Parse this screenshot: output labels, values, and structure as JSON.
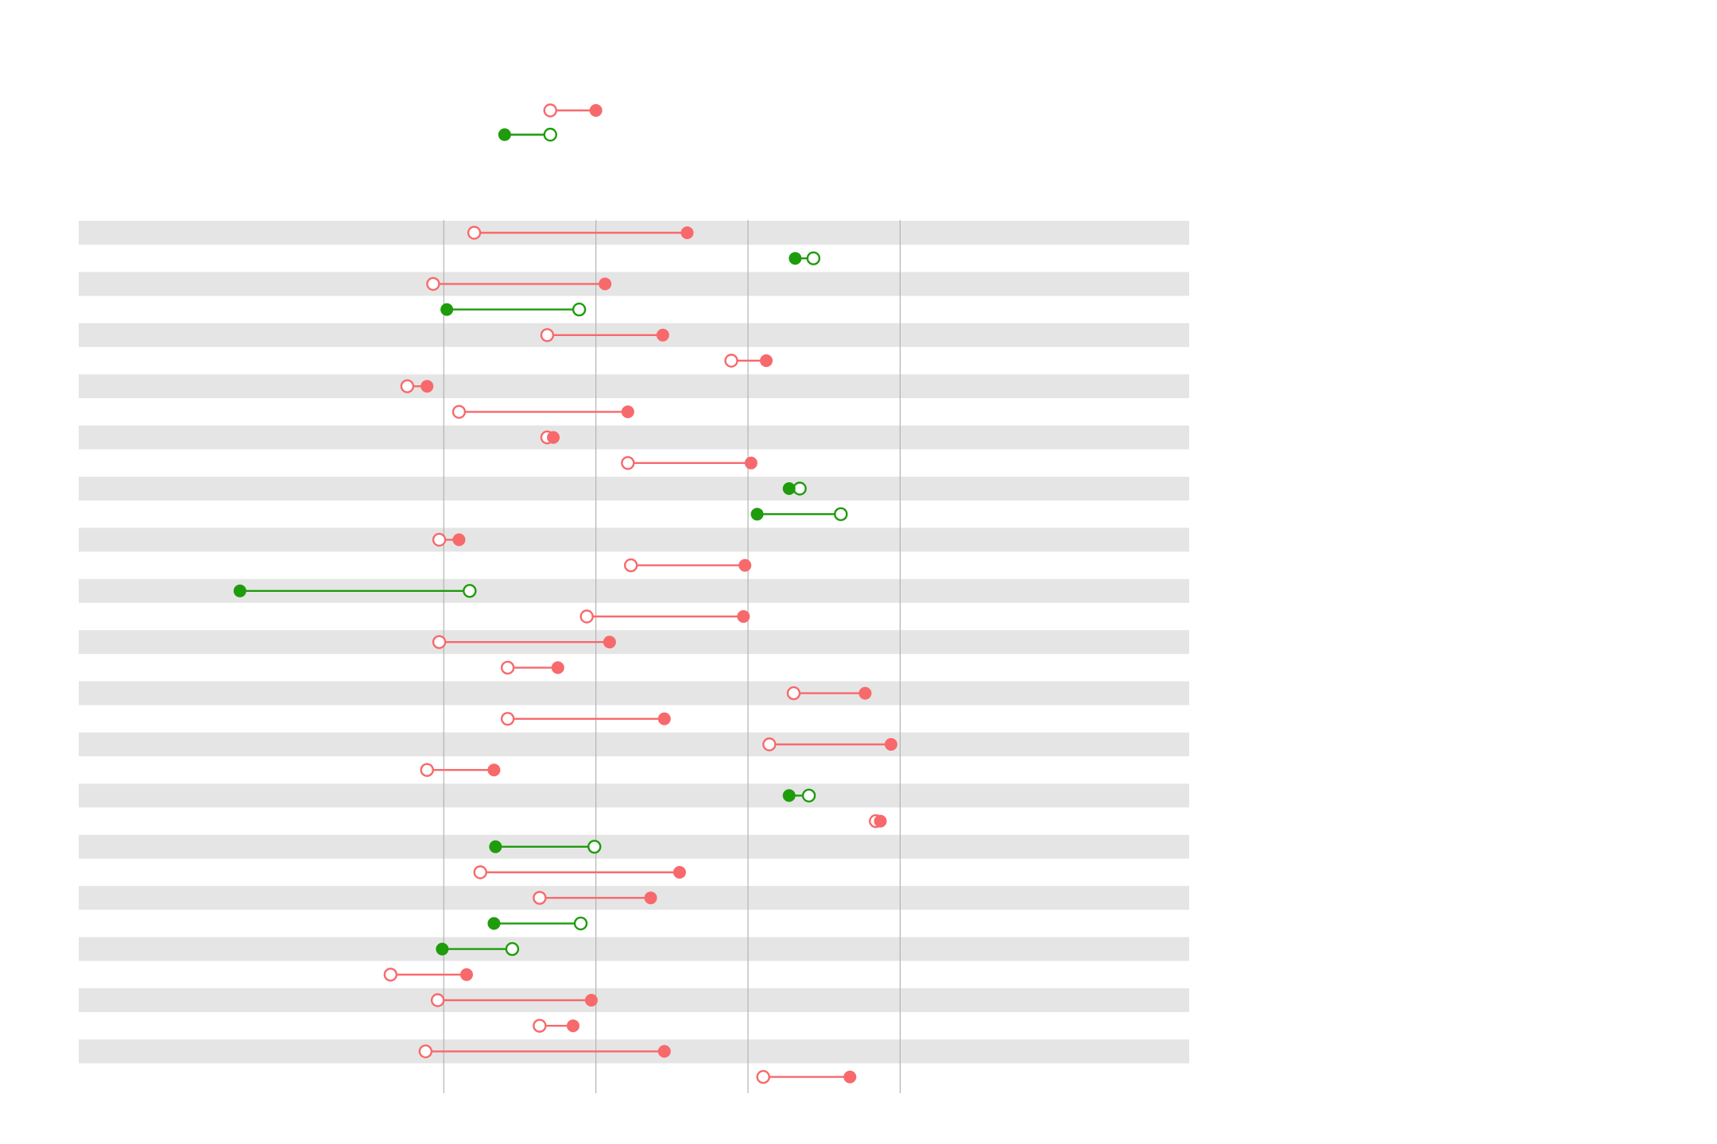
{
  "chart_data": {
    "type": "dumbbell",
    "title": "",
    "xlabel": "",
    "ylabel": "",
    "grid": true,
    "legend_position": "top",
    "xlim": [
      0.8,
      4.45
    ],
    "x_gridlines": [
      2.0,
      2.5,
      3.0,
      3.5
    ],
    "colors": {
      "increase": "#f8696b",
      "decrease": "#1e9c0c",
      "band": "#e5e5e5",
      "gridline": "#b3b3b3"
    },
    "legend": [
      {
        "start": 2.35,
        "end": 2.5
      },
      {
        "start": 2.35,
        "end": 2.2
      }
    ],
    "rows": [
      {
        "start": 2.1,
        "end": 2.8
      },
      {
        "start": 3.215,
        "end": 3.155
      },
      {
        "start": 1.965,
        "end": 2.53
      },
      {
        "start": 2.445,
        "end": 2.01
      },
      {
        "start": 2.34,
        "end": 2.72
      },
      {
        "start": 2.945,
        "end": 3.06
      },
      {
        "start": 1.88,
        "end": 1.945
      },
      {
        "start": 2.05,
        "end": 2.605
      },
      {
        "start": 2.34,
        "end": 2.36
      },
      {
        "start": 2.605,
        "end": 3.01
      },
      {
        "start": 3.17,
        "end": 3.135
      },
      {
        "start": 3.305,
        "end": 3.03
      },
      {
        "start": 1.985,
        "end": 2.05
      },
      {
        "start": 2.615,
        "end": 2.99
      },
      {
        "start": 2.085,
        "end": 1.33
      },
      {
        "start": 2.47,
        "end": 2.985
      },
      {
        "start": 1.985,
        "end": 2.545
      },
      {
        "start": 2.21,
        "end": 2.375
      },
      {
        "start": 3.15,
        "end": 3.385
      },
      {
        "start": 2.21,
        "end": 2.725
      },
      {
        "start": 3.07,
        "end": 3.47
      },
      {
        "start": 1.945,
        "end": 2.165
      },
      {
        "start": 3.2,
        "end": 3.135
      },
      {
        "start": 3.42,
        "end": 3.435
      },
      {
        "start": 2.495,
        "end": 2.17
      },
      {
        "start": 2.12,
        "end": 2.775
      },
      {
        "start": 2.315,
        "end": 2.68
      },
      {
        "start": 2.45,
        "end": 2.165
      },
      {
        "start": 2.225,
        "end": 1.995
      },
      {
        "start": 1.825,
        "end": 2.075
      },
      {
        "start": 1.98,
        "end": 2.485
      },
      {
        "start": 2.315,
        "end": 2.425
      },
      {
        "start": 1.94,
        "end": 2.725
      },
      {
        "start": 3.05,
        "end": 3.335
      }
    ]
  }
}
